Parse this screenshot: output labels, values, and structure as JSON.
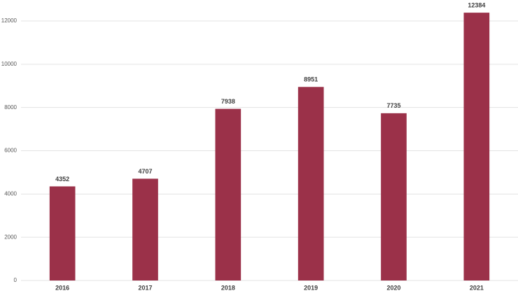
{
  "chart_data": {
    "type": "bar",
    "categories": [
      "2016",
      "2017",
      "2018",
      "2019",
      "2020",
      "2021"
    ],
    "values": [
      4352,
      4707,
      7938,
      8951,
      7735,
      12384
    ],
    "color": "#9b3149",
    "ylim": [
      0,
      12000
    ],
    "yticks": [
      0,
      2000,
      4000,
      6000,
      8000,
      10000,
      12000
    ],
    "grid": true
  }
}
